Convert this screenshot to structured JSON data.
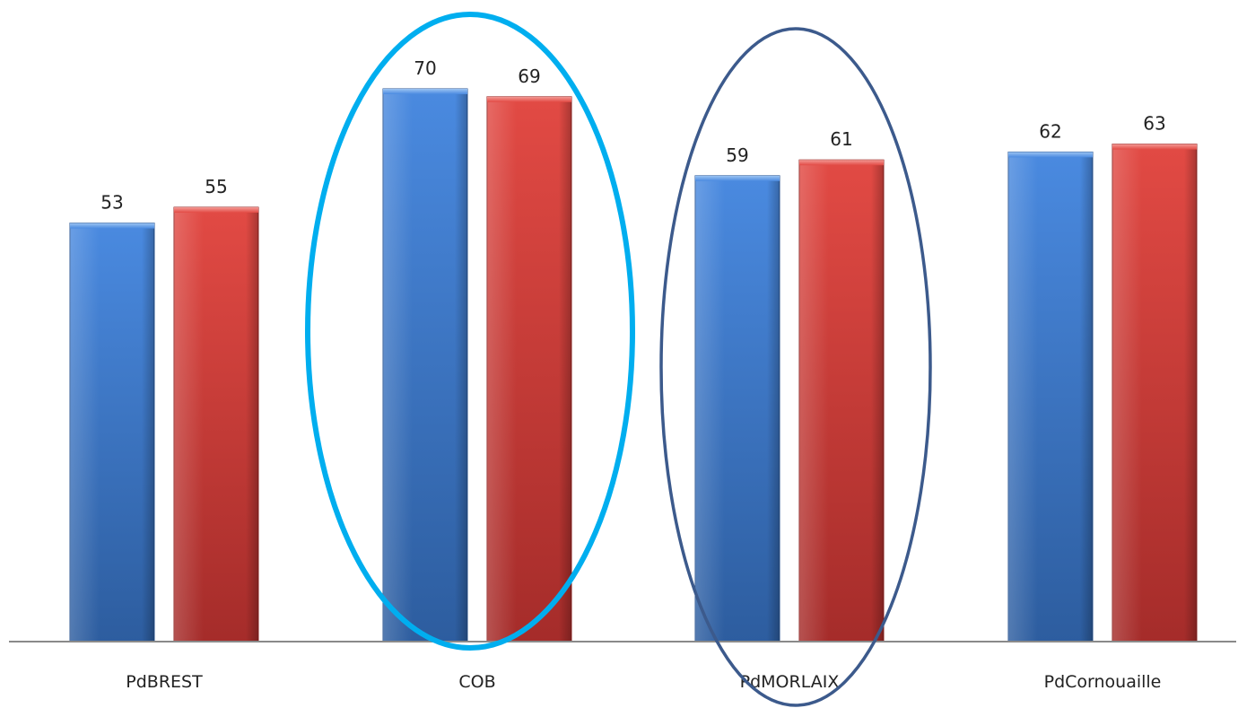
{
  "chart_data": {
    "type": "bar",
    "categories": [
      "PdBREST",
      "COB",
      "PdMORLAIX",
      "PdCornouaille"
    ],
    "series": [
      {
        "values": [
          53,
          70,
          59,
          62
        ],
        "color": "#3a76c8"
      },
      {
        "values": [
          55,
          69,
          61,
          63
        ],
        "color": "#cf3a35"
      }
    ],
    "ylim": [
      0,
      70
    ],
    "grid": false,
    "legend": "none",
    "highlights": [
      {
        "category": "COB",
        "color": "#00aeef"
      },
      {
        "category": "PdMORLAIX",
        "color": "#3c5a8c"
      }
    ]
  }
}
